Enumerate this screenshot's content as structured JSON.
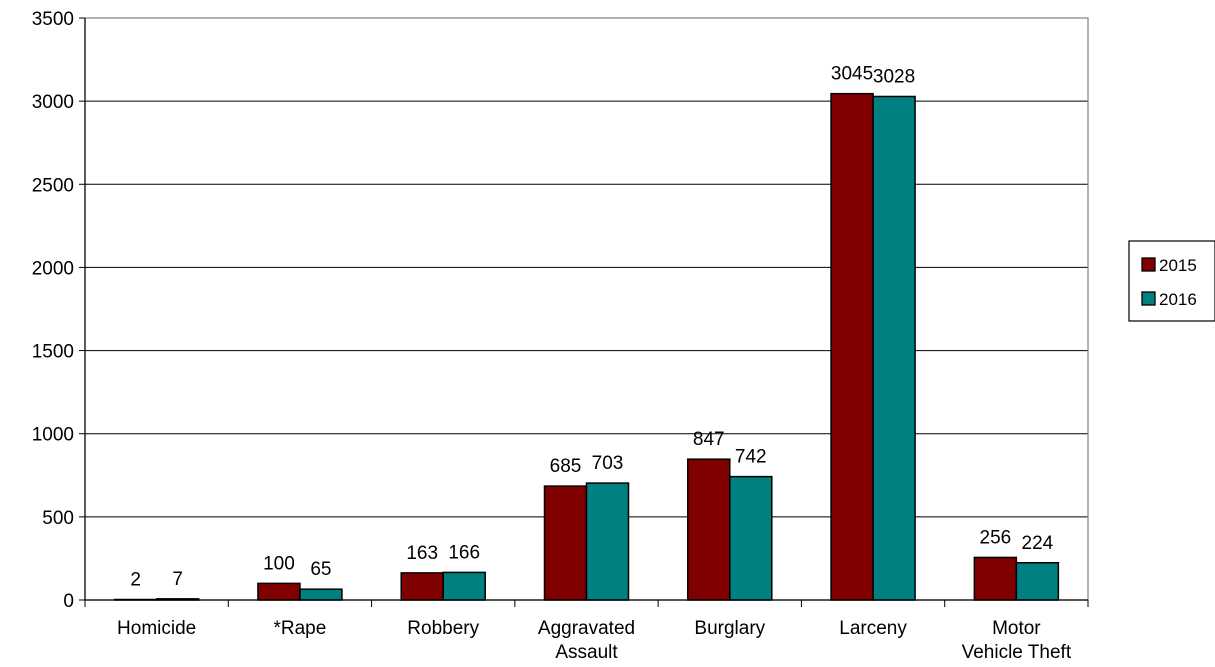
{
  "chart_data": {
    "type": "bar",
    "title": "",
    "xlabel": "",
    "ylabel": "",
    "categories": [
      [
        "Homicide"
      ],
      [
        "*Rape"
      ],
      [
        "Robbery"
      ],
      [
        "Aggravated",
        "Assault"
      ],
      [
        "Burglary"
      ],
      [
        "Larceny"
      ],
      [
        "Motor",
        "Vehicle Theft"
      ]
    ],
    "series": [
      {
        "name": "2015",
        "color": "#800000",
        "values": [
          2,
          100,
          163,
          685,
          847,
          3045,
          256
        ]
      },
      {
        "name": "2016",
        "color": "#008080",
        "values": [
          7,
          65,
          166,
          703,
          742,
          3028,
          224
        ]
      }
    ],
    "ylim": [
      0,
      3500
    ],
    "yticks": [
      0,
      500,
      1000,
      1500,
      2000,
      2500,
      3000,
      3500
    ],
    "grid": true,
    "legend": "right",
    "data_labels": true
  }
}
